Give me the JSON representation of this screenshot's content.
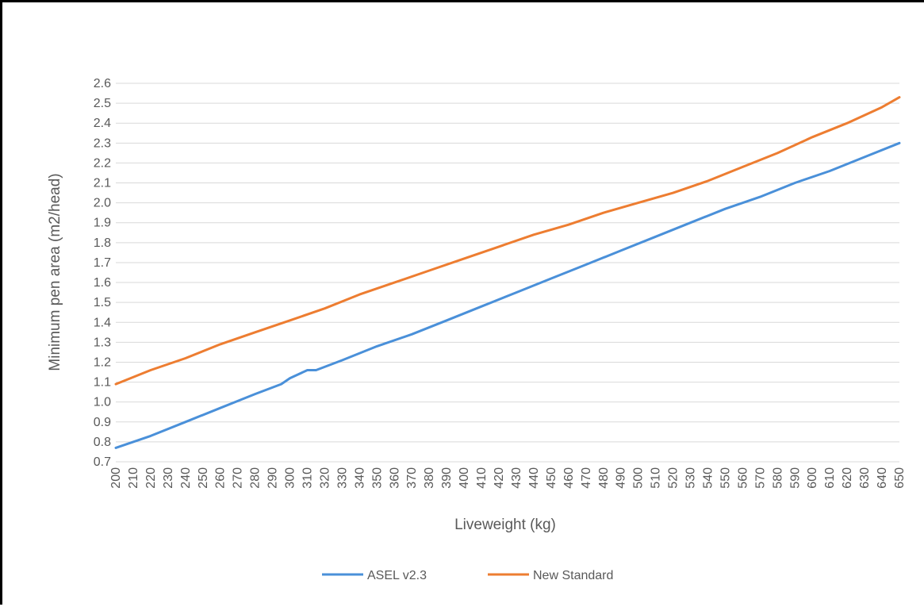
{
  "chart_data": {
    "type": "line",
    "xlabel": "Liveweight (kg)",
    "ylabel": "Minimum pen area (m2/head)",
    "ylim": [
      0.7,
      2.6
    ],
    "ytick_step": 0.1,
    "xlim": [
      200,
      650
    ],
    "x_ticks": [
      200,
      210,
      220,
      230,
      240,
      250,
      260,
      270,
      280,
      290,
      300,
      310,
      320,
      330,
      340,
      350,
      360,
      370,
      380,
      390,
      400,
      410,
      420,
      430,
      440,
      450,
      460,
      470,
      480,
      490,
      500,
      510,
      520,
      530,
      540,
      550,
      560,
      570,
      580,
      590,
      600,
      610,
      620,
      630,
      640,
      650
    ],
    "grid": true,
    "legend_position": "bottom",
    "series": [
      {
        "name": "ASEL v2.3",
        "color": "#4a90d9",
        "points": [
          [
            200,
            0.77
          ],
          [
            220,
            0.83
          ],
          [
            240,
            0.9
          ],
          [
            260,
            0.97
          ],
          [
            280,
            1.04
          ],
          [
            295,
            1.09
          ],
          [
            300,
            1.12
          ],
          [
            310,
            1.16
          ],
          [
            315,
            1.16
          ],
          [
            330,
            1.21
          ],
          [
            350,
            1.28
          ],
          [
            370,
            1.34
          ],
          [
            390,
            1.41
          ],
          [
            410,
            1.48
          ],
          [
            430,
            1.55
          ],
          [
            450,
            1.62
          ],
          [
            470,
            1.69
          ],
          [
            490,
            1.76
          ],
          [
            510,
            1.83
          ],
          [
            530,
            1.9
          ],
          [
            550,
            1.97
          ],
          [
            570,
            2.03
          ],
          [
            590,
            2.1
          ],
          [
            610,
            2.16
          ],
          [
            630,
            2.23
          ],
          [
            650,
            2.3
          ]
        ]
      },
      {
        "name": "New Standard",
        "color": "#ed7d31",
        "points": [
          [
            200,
            1.09
          ],
          [
            220,
            1.16
          ],
          [
            240,
            1.22
          ],
          [
            260,
            1.29
          ],
          [
            280,
            1.35
          ],
          [
            300,
            1.41
          ],
          [
            320,
            1.47
          ],
          [
            340,
            1.54
          ],
          [
            360,
            1.6
          ],
          [
            380,
            1.66
          ],
          [
            400,
            1.72
          ],
          [
            420,
            1.78
          ],
          [
            440,
            1.84
          ],
          [
            460,
            1.89
          ],
          [
            480,
            1.95
          ],
          [
            500,
            2.0
          ],
          [
            520,
            2.05
          ],
          [
            540,
            2.11
          ],
          [
            560,
            2.18
          ],
          [
            580,
            2.25
          ],
          [
            600,
            2.33
          ],
          [
            620,
            2.4
          ],
          [
            640,
            2.48
          ],
          [
            650,
            2.53
          ]
        ]
      }
    ]
  }
}
